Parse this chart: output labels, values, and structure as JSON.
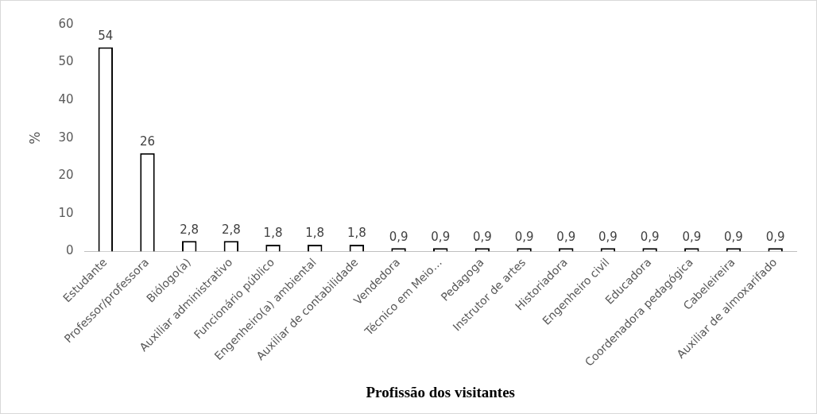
{
  "chart_data": {
    "type": "bar",
    "xlabel": "Profissão dos visitantes",
    "ylabel": "%",
    "categories": [
      "Estudante",
      "Professor/professora",
      "Biólogo(a)",
      "Auxiliar administrativo",
      "Funcionário público",
      "Engenheiro(a) ambiental",
      "Auxiliar de contabilidade",
      "Vendedora",
      "Técnico em Meio…",
      "Pedagoga",
      "Instrutor de artes",
      "Historiadora",
      "Engenheiro civil",
      "Educadora",
      "Coordenadora pedagógica",
      "Cabeleireira",
      "Auxiliar de almoxarifado"
    ],
    "values": [
      54,
      26,
      2.8,
      2.8,
      1.8,
      1.8,
      1.8,
      0.9,
      0.9,
      0.9,
      0.9,
      0.9,
      0.9,
      0.9,
      0.9,
      0.9,
      0.9
    ],
    "value_labels": [
      "54",
      "26",
      "2,8",
      "2,8",
      "1,8",
      "1,8",
      "1,8",
      "0,9",
      "0,9",
      "0,9",
      "0,9",
      "0,9",
      "0,9",
      "0,9",
      "0,9",
      "0,9",
      "0,9"
    ],
    "color": "#ffffff",
    "ylim": [
      0,
      60
    ],
    "yticks": [
      0,
      10,
      20,
      30,
      40,
      50,
      60
    ],
    "grid": false,
    "legend": false
  }
}
